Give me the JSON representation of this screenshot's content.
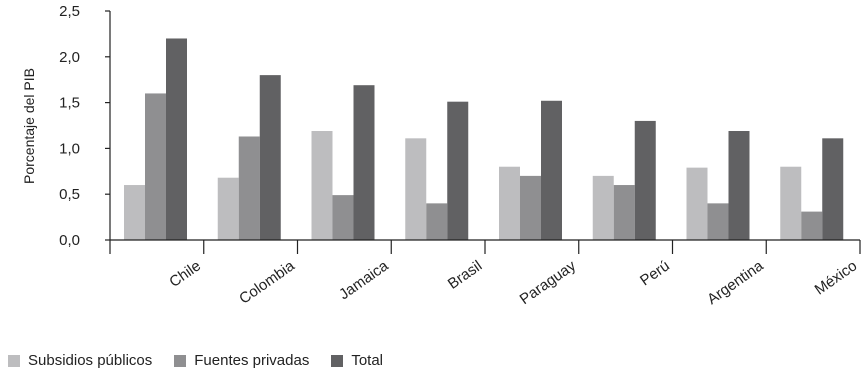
{
  "chart_data": {
    "type": "bar",
    "ylabel": "Porcentaje del PIB",
    "xlabel": "",
    "ylim": [
      0,
      2.5
    ],
    "yticks": [
      "0,0",
      "0,5",
      "1,0",
      "1,5",
      "2,0",
      "2,5"
    ],
    "categories": [
      "Chile",
      "Colombia",
      "Jamaica",
      "Brasil",
      "Paraguay",
      "Perú",
      "Argentina",
      "México"
    ],
    "series": [
      {
        "name": "Subsidios públicos",
        "color": "#bdbdbf",
        "values": [
          0.6,
          0.68,
          1.19,
          1.11,
          0.8,
          0.7,
          0.79,
          0.8
        ]
      },
      {
        "name": "Fuentes privadas",
        "color": "#8f8f91",
        "values": [
          1.6,
          1.13,
          0.49,
          0.4,
          0.7,
          0.6,
          0.4,
          0.31
        ]
      },
      {
        "name": "Total",
        "color": "#616163",
        "values": [
          2.2,
          1.8,
          1.69,
          1.51,
          1.52,
          1.3,
          1.19,
          1.11
        ]
      }
    ],
    "grid": false,
    "legend_position": "bottom-left"
  }
}
